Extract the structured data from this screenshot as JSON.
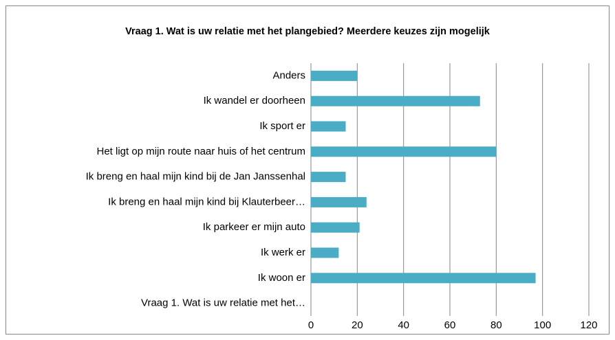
{
  "chart_data": {
    "type": "barh",
    "title": "Vraag 1. Wat is uw relatie met het plangebied? Meerdere keuzes zijn mogelijk",
    "categories": [
      "Anders",
      "Ik wandel er doorheen",
      "Ik sport er",
      "Het ligt op mijn route naar huis of het centrum",
      "Ik breng en haal mijn kind bij de Jan Janssenhal",
      "Ik breng en haal mijn kind bij Klauterbeer…",
      "Ik parkeer er mijn auto",
      "Ik werk er",
      "Ik woon er",
      "Vraag 1. Wat is uw relatie met het…"
    ],
    "values": [
      20,
      73,
      15,
      80,
      15,
      24,
      21,
      12,
      97,
      0
    ],
    "color": "#4bacc6",
    "xlim": [
      0,
      120
    ],
    "xticks": [
      0,
      20,
      40,
      60,
      80,
      100,
      120
    ],
    "grid": true
  }
}
